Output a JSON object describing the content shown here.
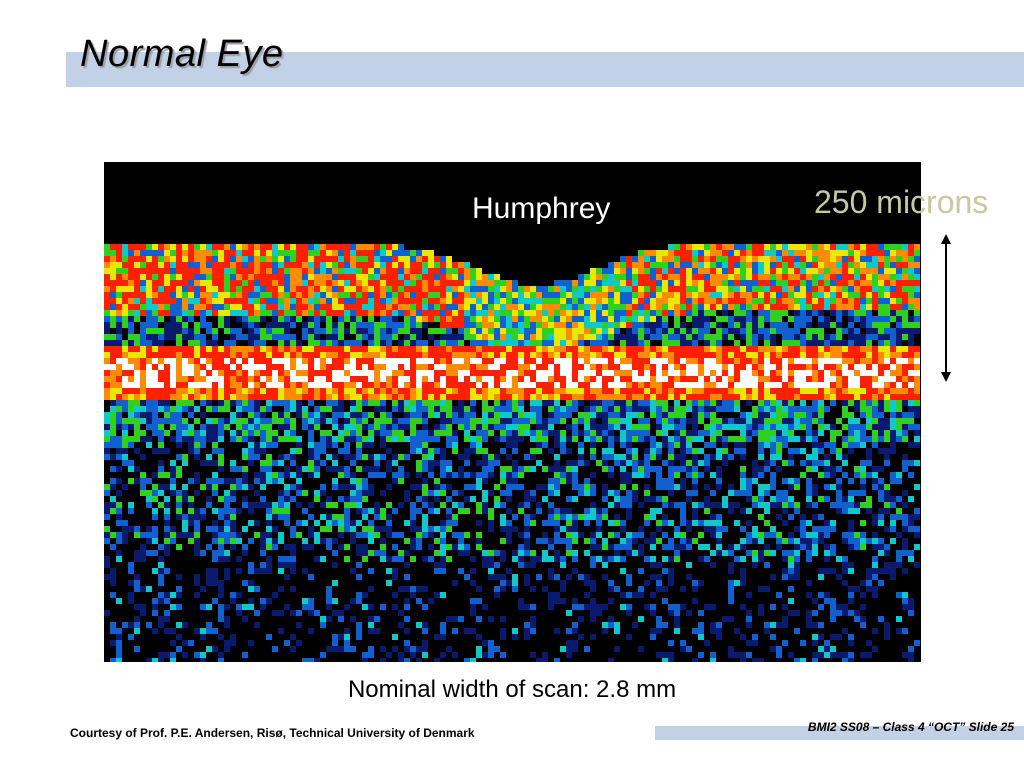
{
  "slide": {
    "title": "Normal Eye",
    "scan_label": "Humphrey",
    "scale_label": "250 microns",
    "caption": "Nominal width of scan: 2.8 mm",
    "footer_credit": "Courtesy of Prof. P.E. Andersen, Risø, Technical University of Denmark",
    "footer_slide": "BMI2 SS08 – Class 4 “OCT” Slide 25"
  },
  "colors": {
    "title_band": "#c3d1e6",
    "scan_background": "#000000",
    "scale_label": "#c8c8a0",
    "heat_palette": [
      "#0a1a6e",
      "#1060d0",
      "#10c8c8",
      "#30d020",
      "#e8e800",
      "#ff8c00",
      "#ff2000",
      "#ffffff"
    ]
  },
  "icons": {
    "scale_arrow": "double-headed-vertical-arrow-icon"
  }
}
